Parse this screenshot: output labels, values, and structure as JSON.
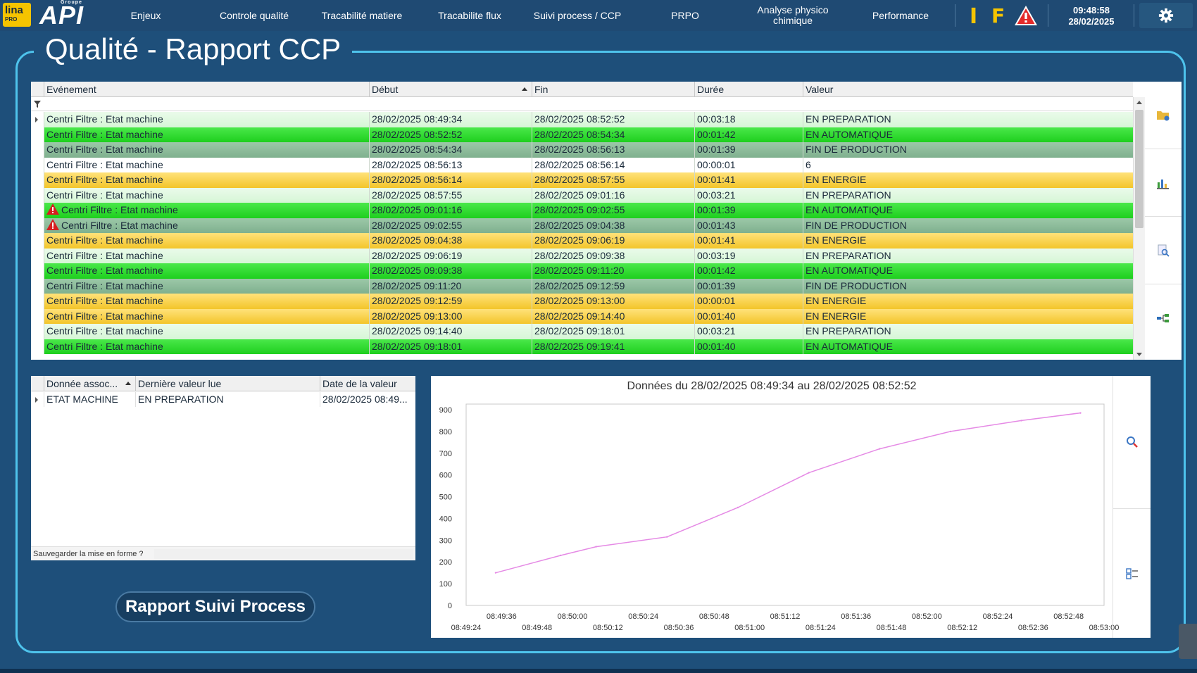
{
  "topbar": {
    "logo_lina": "lina",
    "logo_lina_sub": "PRO",
    "logo_api": "API",
    "logo_api_sub": "Groupe",
    "nav": [
      {
        "label": "Enjeux"
      },
      {
        "label": "Controle qualité"
      },
      {
        "label": "Tracabilité matiere"
      },
      {
        "label": "Tracabilite flux"
      },
      {
        "label": "Suivi process / CCP"
      },
      {
        "label": "PRPO"
      },
      {
        "label": "Analyse physico chimique"
      },
      {
        "label": "Performance"
      }
    ],
    "indicator_i": "I",
    "indicator_f": "F",
    "time": "09:48:58",
    "date": "28/02/2025",
    "accent_color": "#f5c400"
  },
  "page_title": "Qualité - Rapport CCP",
  "events": {
    "columns": [
      "Evénement",
      "Début",
      "Fin",
      "Durée",
      "Valeur"
    ],
    "sorted_column": "Début",
    "rows": [
      {
        "event": "Centri Filtre : Etat machine",
        "start": "28/02/2025 08:49:34",
        "end": "28/02/2025 08:52:52",
        "duration": "00:03:18",
        "value": "EN PREPARATION",
        "state": "prep",
        "warn": false,
        "current": true
      },
      {
        "event": "Centri Filtre : Etat machine",
        "start": "28/02/2025 08:52:52",
        "end": "28/02/2025 08:54:34",
        "duration": "00:01:42",
        "value": "EN AUTOMATIQUE",
        "state": "auto",
        "warn": false
      },
      {
        "event": "Centri Filtre : Etat machine",
        "start": "28/02/2025 08:54:34",
        "end": "28/02/2025 08:56:13",
        "duration": "00:01:39",
        "value": "FIN DE PRODUCTION",
        "state": "fin",
        "warn": false
      },
      {
        "event": "Centri Filtre : Etat machine",
        "start": "28/02/2025 08:56:13",
        "end": "28/02/2025 08:56:14",
        "duration": "00:00:01",
        "value": "6",
        "state": "none",
        "warn": false
      },
      {
        "event": "Centri Filtre : Etat machine",
        "start": "28/02/2025 08:56:14",
        "end": "28/02/2025 08:57:55",
        "duration": "00:01:41",
        "value": "EN ENERGIE",
        "state": "ene",
        "warn": false
      },
      {
        "event": "Centri Filtre : Etat machine",
        "start": "28/02/2025 08:57:55",
        "end": "28/02/2025 09:01:16",
        "duration": "00:03:21",
        "value": "EN PREPARATION",
        "state": "prep",
        "warn": false
      },
      {
        "event": "Centri Filtre : Etat machine",
        "start": "28/02/2025 09:01:16",
        "end": "28/02/2025 09:02:55",
        "duration": "00:01:39",
        "value": "EN AUTOMATIQUE",
        "state": "auto",
        "warn": true
      },
      {
        "event": "Centri Filtre : Etat machine",
        "start": "28/02/2025 09:02:55",
        "end": "28/02/2025 09:04:38",
        "duration": "00:01:43",
        "value": "FIN DE PRODUCTION",
        "state": "fin",
        "warn": true
      },
      {
        "event": "Centri Filtre : Etat machine",
        "start": "28/02/2025 09:04:38",
        "end": "28/02/2025 09:06:19",
        "duration": "00:01:41",
        "value": "EN ENERGIE",
        "state": "ene",
        "warn": false
      },
      {
        "event": "Centri Filtre : Etat machine",
        "start": "28/02/2025 09:06:19",
        "end": "28/02/2025 09:09:38",
        "duration": "00:03:19",
        "value": "EN PREPARATION",
        "state": "prep",
        "warn": false
      },
      {
        "event": "Centri Filtre : Etat machine",
        "start": "28/02/2025 09:09:38",
        "end": "28/02/2025 09:11:20",
        "duration": "00:01:42",
        "value": "EN AUTOMATIQUE",
        "state": "auto",
        "warn": false
      },
      {
        "event": "Centri Filtre : Etat machine",
        "start": "28/02/2025 09:11:20",
        "end": "28/02/2025 09:12:59",
        "duration": "00:01:39",
        "value": "FIN DE PRODUCTION",
        "state": "fin",
        "warn": false
      },
      {
        "event": "Centri Filtre : Etat machine",
        "start": "28/02/2025 09:12:59",
        "end": "28/02/2025 09:13:00",
        "duration": "00:00:01",
        "value": "EN ENERGIE",
        "state": "ene",
        "warn": false
      },
      {
        "event": "Centri Filtre : Etat machine",
        "start": "28/02/2025 09:13:00",
        "end": "28/02/2025 09:14:40",
        "duration": "00:01:40",
        "value": "EN ENERGIE",
        "state": "ene",
        "warn": false
      },
      {
        "event": "Centri Filtre : Etat machine",
        "start": "28/02/2025 09:14:40",
        "end": "28/02/2025 09:18:01",
        "duration": "00:03:21",
        "value": "EN PREPARATION",
        "state": "prep",
        "warn": false
      },
      {
        "event": "Centri Filtre : Etat machine",
        "start": "28/02/2025 09:18:01",
        "end": "28/02/2025 09:19:41",
        "duration": "00:01:40",
        "value": "EN AUTOMATIQUE",
        "state": "auto",
        "warn": false
      }
    ],
    "state_colors": {
      "prep": "#dcf7dc",
      "auto": "#2bdc2b",
      "fin": "#8dbc9a",
      "ene": "#f7cf3e",
      "none": "#ffffff"
    },
    "side_tools": [
      "folder-icon",
      "bar-chart-icon",
      "zoom-doc-icon",
      "flow-icon"
    ]
  },
  "assoc": {
    "columns": [
      "Donnée assoc...",
      "Dernière valeur lue",
      "Date de la valeur"
    ],
    "rows": [
      {
        "name": "ETAT MACHINE",
        "last_value": "EN PREPARATION",
        "date": "28/02/2025 08:49..."
      }
    ],
    "footer": "Sauvegarder la mise en forme ?"
  },
  "button_label": "Rapport Suivi Process",
  "chart_data": {
    "type": "line",
    "title": "Données du 28/02/2025 08:49:34 au 28/02/2025 08:52:52",
    "xlabel": "",
    "ylabel": "",
    "ylim": [
      0,
      900
    ],
    "yticks": [
      0,
      100,
      200,
      300,
      400,
      500,
      600,
      700,
      800,
      900
    ],
    "xticks_top": [
      "08:49:36",
      "08:50:00",
      "08:50:24",
      "08:50:48",
      "08:51:12",
      "08:51:36",
      "08:52:00",
      "08:52:24",
      "08:52:48"
    ],
    "xticks_bottom": [
      "08:49:24",
      "08:49:48",
      "08:50:12",
      "08:50:36",
      "08:51:00",
      "08:51:24",
      "08:51:48",
      "08:52:12",
      "08:52:36",
      "08:53:00"
    ],
    "xlim": [
      "08:49:24",
      "08:53:00"
    ],
    "series": [
      {
        "color": "#e58ae5",
        "x": [
          "08:49:34",
          "08:49:56",
          "08:50:08",
          "08:50:32",
          "08:50:56",
          "08:51:20",
          "08:51:44",
          "08:52:08",
          "08:52:32",
          "08:52:52"
        ],
        "values": [
          150,
          230,
          270,
          315,
          450,
          610,
          720,
          800,
          850,
          885
        ]
      }
    ],
    "grid": false,
    "legend": "none"
  }
}
